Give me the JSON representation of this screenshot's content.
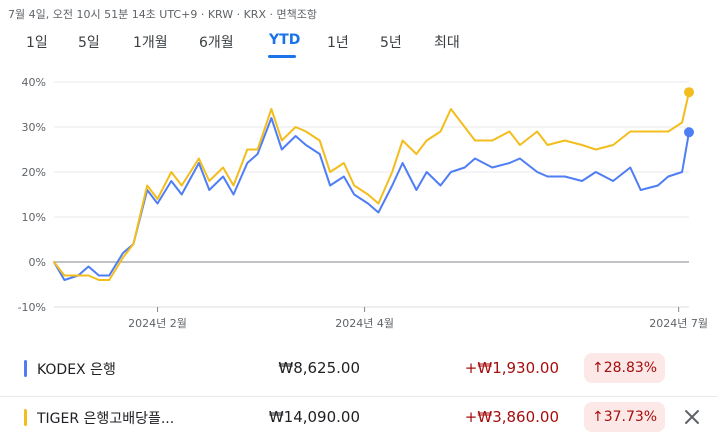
{
  "header": {
    "meta": "7월 4일, 오전 10시 51분 14초 UTC+9 · KRW · KRX · 면책조항"
  },
  "tabs": [
    {
      "label": "1일"
    },
    {
      "label": "5일"
    },
    {
      "label": "1개월"
    },
    {
      "label": "6개월"
    },
    {
      "label": "YTD"
    },
    {
      "label": "1년"
    },
    {
      "label": "5년"
    },
    {
      "label": "최대"
    }
  ],
  "active_tab": "YTD",
  "colors": {
    "kodex": "#4f7df3",
    "tiger": "#f2bd1d",
    "accent": "#1a73e8",
    "negative_bg": "#fce8e6",
    "positive_text": "#a50e0e"
  },
  "series_table": [
    {
      "name": "KODEX 은행",
      "price": "₩8,625.00",
      "change": "+₩1,930.00",
      "pct": "↑28.83%"
    },
    {
      "name": "TIGER 은행고배당플...",
      "price": "₩14,090.00",
      "change": "+₩3,860.00",
      "pct": "↑37.73%"
    }
  ],
  "chart_data": {
    "type": "line",
    "y_unit": "%",
    "ylim": [
      -10,
      40
    ],
    "yticks": [
      "40%",
      "30%",
      "20%",
      "10%",
      "0%",
      "-10%"
    ],
    "x_range": [
      "2024-01-02",
      "2024-07-04"
    ],
    "xticks": [
      "2024년 2월",
      "2024년 4월",
      "2024년 7월"
    ],
    "grid": true,
    "series": [
      {
        "name": "KODEX 은행",
        "color": "#4f7df3",
        "x": [
          "2024-01-02",
          "2024-01-05",
          "2024-01-09",
          "2024-01-12",
          "2024-01-15",
          "2024-01-18",
          "2024-01-22",
          "2024-01-25",
          "2024-01-29",
          "2024-02-01",
          "2024-02-05",
          "2024-02-08",
          "2024-02-13",
          "2024-02-16",
          "2024-02-20",
          "2024-02-23",
          "2024-02-27",
          "2024-03-01",
          "2024-03-05",
          "2024-03-08",
          "2024-03-12",
          "2024-03-15",
          "2024-03-19",
          "2024-03-22",
          "2024-03-26",
          "2024-03-29",
          "2024-04-02",
          "2024-04-05",
          "2024-04-09",
          "2024-04-12",
          "2024-04-16",
          "2024-04-19",
          "2024-04-23",
          "2024-04-26",
          "2024-04-30",
          "2024-05-03",
          "2024-05-08",
          "2024-05-13",
          "2024-05-16",
          "2024-05-21",
          "2024-05-24",
          "2024-05-29",
          "2024-06-03",
          "2024-06-07",
          "2024-06-12",
          "2024-06-17",
          "2024-06-20",
          "2024-06-25",
          "2024-06-28",
          "2024-07-02",
          "2024-07-04"
        ],
        "y": [
          0,
          -4,
          -3,
          -1,
          -3,
          -3,
          2,
          4,
          16,
          13,
          18,
          15,
          22,
          16,
          19,
          15,
          22,
          24,
          32,
          25,
          28,
          26,
          24,
          17,
          19,
          15,
          13,
          11,
          17,
          22,
          16,
          20,
          17,
          20,
          21,
          23,
          21,
          22,
          23,
          20,
          19,
          19,
          18,
          20,
          18,
          21,
          16,
          17,
          19,
          20,
          28.83
        ]
      },
      {
        "name": "TIGER 은행고배당플...",
        "color": "#f2bd1d",
        "x": [
          "2024-01-02",
          "2024-01-05",
          "2024-01-09",
          "2024-01-12",
          "2024-01-15",
          "2024-01-18",
          "2024-01-22",
          "2024-01-25",
          "2024-01-29",
          "2024-02-01",
          "2024-02-05",
          "2024-02-08",
          "2024-02-13",
          "2024-02-16",
          "2024-02-20",
          "2024-02-23",
          "2024-02-27",
          "2024-03-01",
          "2024-03-05",
          "2024-03-08",
          "2024-03-12",
          "2024-03-15",
          "2024-03-19",
          "2024-03-22",
          "2024-03-26",
          "2024-03-29",
          "2024-04-02",
          "2024-04-05",
          "2024-04-09",
          "2024-04-12",
          "2024-04-16",
          "2024-04-19",
          "2024-04-23",
          "2024-04-26",
          "2024-04-30",
          "2024-05-03",
          "2024-05-08",
          "2024-05-13",
          "2024-05-16",
          "2024-05-21",
          "2024-05-24",
          "2024-05-29",
          "2024-06-03",
          "2024-06-07",
          "2024-06-12",
          "2024-06-17",
          "2024-06-20",
          "2024-06-25",
          "2024-06-28",
          "2024-07-02",
          "2024-07-04"
        ],
        "y": [
          0,
          -3,
          -3,
          -3,
          -4,
          -4,
          1,
          4,
          17,
          14,
          20,
          17,
          23,
          18,
          21,
          17,
          25,
          25,
          34,
          27,
          30,
          29,
          27,
          20,
          22,
          17,
          15,
          13,
          20,
          27,
          24,
          27,
          29,
          34,
          30,
          27,
          27,
          29,
          26,
          29,
          26,
          27,
          26,
          25,
          26,
          29,
          29,
          29,
          29,
          31,
          37.73
        ]
      }
    ]
  }
}
